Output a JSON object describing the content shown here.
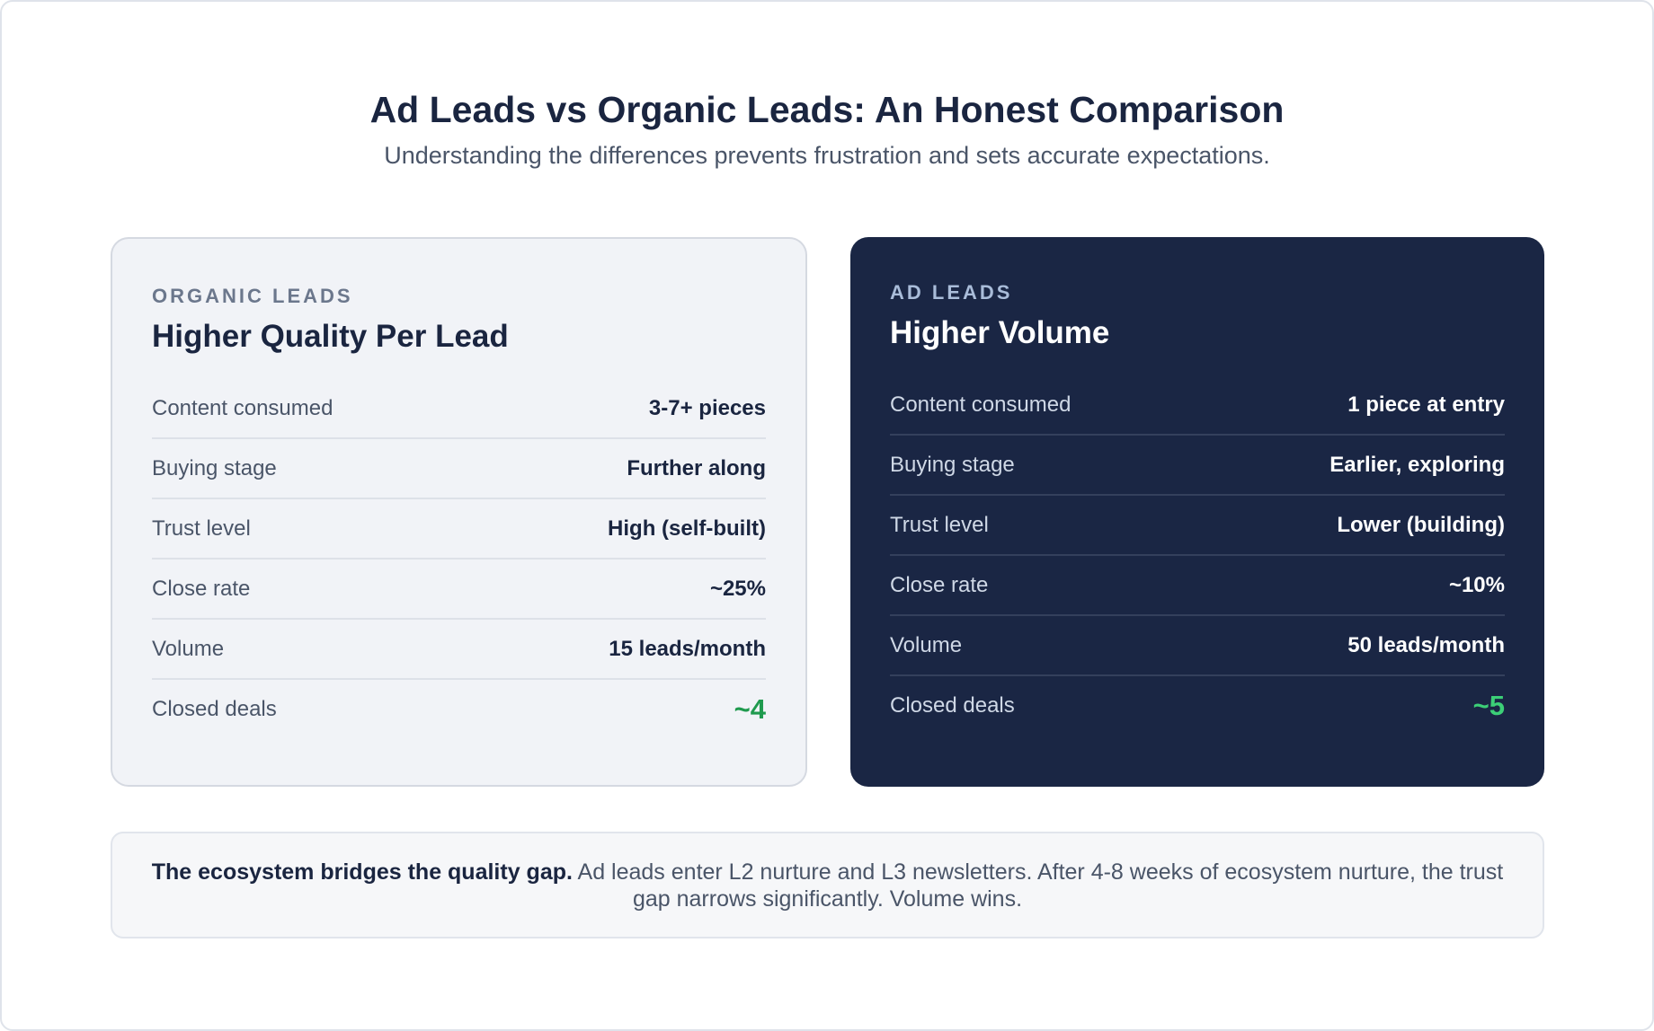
{
  "header": {
    "title": "Ad Leads vs Organic Leads: An Honest Comparison",
    "subtitle": "Understanding the differences prevents frustration and sets accurate expectations."
  },
  "organic": {
    "eyebrow": "ORGANIC LEADS",
    "title": "Higher Quality Per Lead",
    "rows": [
      {
        "label": "Content consumed",
        "value": "3-7+ pieces"
      },
      {
        "label": "Buying stage",
        "value": "Further along"
      },
      {
        "label": "Trust level",
        "value": "High (self-built)"
      },
      {
        "label": "Close rate",
        "value": "~25%"
      },
      {
        "label": "Volume",
        "value": "15 leads/month"
      },
      {
        "label": "Closed deals",
        "value": "~4"
      }
    ]
  },
  "ad": {
    "eyebrow": "AD LEADS",
    "title": "Higher Volume",
    "rows": [
      {
        "label": "Content consumed",
        "value": "1 piece at entry"
      },
      {
        "label": "Buying stage",
        "value": "Earlier, exploring"
      },
      {
        "label": "Trust level",
        "value": "Lower (building)"
      },
      {
        "label": "Close rate",
        "value": "~10%"
      },
      {
        "label": "Volume",
        "value": "50 leads/month"
      },
      {
        "label": "Closed deals",
        "value": "~5"
      }
    ]
  },
  "footer": {
    "strong": "The ecosystem bridges the quality gap.",
    "text": " Ad leads enter L2 nurture and L3 newsletters. After 4-8 weeks of ecosystem nurture, the trust gap narrows significantly. Volume wins."
  },
  "colors": {
    "navy": "#1a2644",
    "green_light_card": "#1f9a4e",
    "green_dark_card": "#3ccf77"
  }
}
